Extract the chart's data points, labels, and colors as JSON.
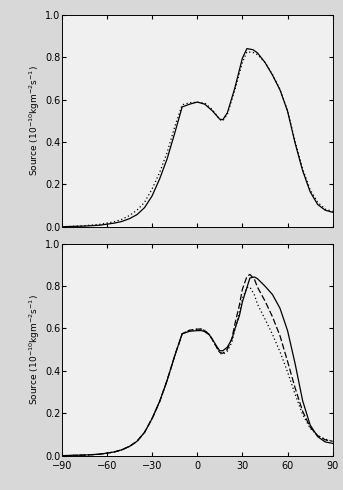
{
  "top_solid_x": [
    -90,
    -85,
    -80,
    -75,
    -70,
    -65,
    -60,
    -55,
    -50,
    -45,
    -40,
    -35,
    -30,
    -25,
    -20,
    -15,
    -10,
    -5,
    0,
    5,
    10,
    15,
    17,
    20,
    25,
    30,
    33,
    37,
    40,
    45,
    50,
    55,
    60,
    65,
    70,
    75,
    80,
    85,
    90
  ],
  "top_solid_y": [
    0.0,
    0.001,
    0.002,
    0.003,
    0.005,
    0.007,
    0.012,
    0.017,
    0.025,
    0.038,
    0.057,
    0.09,
    0.145,
    0.225,
    0.32,
    0.44,
    0.565,
    0.578,
    0.588,
    0.578,
    0.547,
    0.507,
    0.505,
    0.537,
    0.655,
    0.795,
    0.84,
    0.835,
    0.82,
    0.775,
    0.715,
    0.645,
    0.545,
    0.395,
    0.265,
    0.165,
    0.105,
    0.078,
    0.068
  ],
  "top_dashed_x": [
    -90,
    -85,
    -80,
    -75,
    -70,
    -65,
    -60,
    -55,
    -50,
    -45,
    -40,
    -35,
    -30,
    -25,
    -20,
    -15,
    -10,
    -5,
    0,
    5,
    10,
    15,
    17,
    20,
    25,
    30,
    33,
    37,
    40,
    45,
    50,
    55,
    60,
    65,
    70,
    75,
    80,
    85,
    90
  ],
  "top_dashed_y": [
    0.0,
    0.001,
    0.003,
    0.005,
    0.008,
    0.011,
    0.017,
    0.024,
    0.035,
    0.053,
    0.078,
    0.115,
    0.178,
    0.255,
    0.35,
    0.47,
    0.575,
    0.585,
    0.587,
    0.583,
    0.553,
    0.505,
    0.499,
    0.53,
    0.645,
    0.775,
    0.825,
    0.822,
    0.812,
    0.775,
    0.718,
    0.648,
    0.548,
    0.403,
    0.273,
    0.175,
    0.115,
    0.083,
    0.072
  ],
  "bot_solid_x": [
    -90,
    -85,
    -80,
    -75,
    -70,
    -65,
    -60,
    -55,
    -50,
    -45,
    -40,
    -35,
    -30,
    -25,
    -20,
    -15,
    -10,
    -5,
    0,
    3,
    5,
    8,
    10,
    13,
    15,
    17,
    20,
    23,
    25,
    28,
    30,
    33,
    35,
    38,
    40,
    45,
    50,
    55,
    60,
    65,
    70,
    75,
    80,
    85,
    90
  ],
  "bot_solid_y": [
    0.0,
    0.001,
    0.002,
    0.003,
    0.005,
    0.007,
    0.012,
    0.018,
    0.028,
    0.044,
    0.068,
    0.11,
    0.175,
    0.255,
    0.355,
    0.47,
    0.575,
    0.587,
    0.59,
    0.59,
    0.585,
    0.57,
    0.55,
    0.515,
    0.495,
    0.495,
    0.512,
    0.55,
    0.598,
    0.66,
    0.725,
    0.793,
    0.838,
    0.843,
    0.835,
    0.8,
    0.76,
    0.695,
    0.59,
    0.435,
    0.26,
    0.145,
    0.09,
    0.065,
    0.058
  ],
  "bot_dashed1_x": [
    -90,
    -85,
    -80,
    -75,
    -70,
    -65,
    -60,
    -55,
    -50,
    -45,
    -40,
    -35,
    -30,
    -25,
    -20,
    -15,
    -10,
    -5,
    0,
    3,
    5,
    8,
    10,
    13,
    15,
    17,
    20,
    23,
    25,
    28,
    30,
    33,
    35,
    38,
    40,
    45,
    50,
    55,
    60,
    65,
    70,
    75,
    80,
    85,
    90
  ],
  "bot_dashed1_y": [
    0.0,
    0.001,
    0.002,
    0.003,
    0.005,
    0.007,
    0.012,
    0.018,
    0.028,
    0.044,
    0.068,
    0.11,
    0.175,
    0.255,
    0.355,
    0.47,
    0.575,
    0.592,
    0.597,
    0.597,
    0.59,
    0.572,
    0.548,
    0.51,
    0.487,
    0.483,
    0.502,
    0.552,
    0.62,
    0.71,
    0.785,
    0.845,
    0.855,
    0.832,
    0.795,
    0.73,
    0.655,
    0.565,
    0.445,
    0.32,
    0.21,
    0.135,
    0.095,
    0.075,
    0.068
  ],
  "bot_dashed2_x": [
    -90,
    -85,
    -80,
    -75,
    -70,
    -65,
    -60,
    -55,
    -50,
    -45,
    -40,
    -35,
    -30,
    -25,
    -20,
    -15,
    -10,
    -5,
    0,
    3,
    5,
    8,
    10,
    13,
    15,
    17,
    20,
    23,
    25,
    28,
    30,
    33,
    35,
    38,
    40,
    45,
    50,
    55,
    60,
    65,
    70,
    75,
    80,
    85,
    90
  ],
  "bot_dashed2_y": [
    0.0,
    0.001,
    0.002,
    0.003,
    0.005,
    0.007,
    0.012,
    0.018,
    0.028,
    0.044,
    0.068,
    0.11,
    0.175,
    0.255,
    0.355,
    0.47,
    0.575,
    0.592,
    0.597,
    0.597,
    0.59,
    0.572,
    0.548,
    0.51,
    0.483,
    0.478,
    0.493,
    0.535,
    0.595,
    0.672,
    0.742,
    0.793,
    0.795,
    0.758,
    0.715,
    0.645,
    0.572,
    0.49,
    0.395,
    0.29,
    0.195,
    0.13,
    0.095,
    0.078,
    0.068
  ],
  "ylabel": "Source ($10^{-10}$kgm$^{-2}$s$^{-1}$)",
  "xlim": [
    -90,
    90
  ],
  "ylim": [
    0.0,
    1.0
  ],
  "xticks": [
    -90,
    -60,
    -30,
    0,
    30,
    60,
    90
  ],
  "yticks": [
    0.0,
    0.2,
    0.4,
    0.6,
    0.8,
    1.0
  ],
  "line_color": "#000000",
  "bg_color": "#f0f0f0"
}
